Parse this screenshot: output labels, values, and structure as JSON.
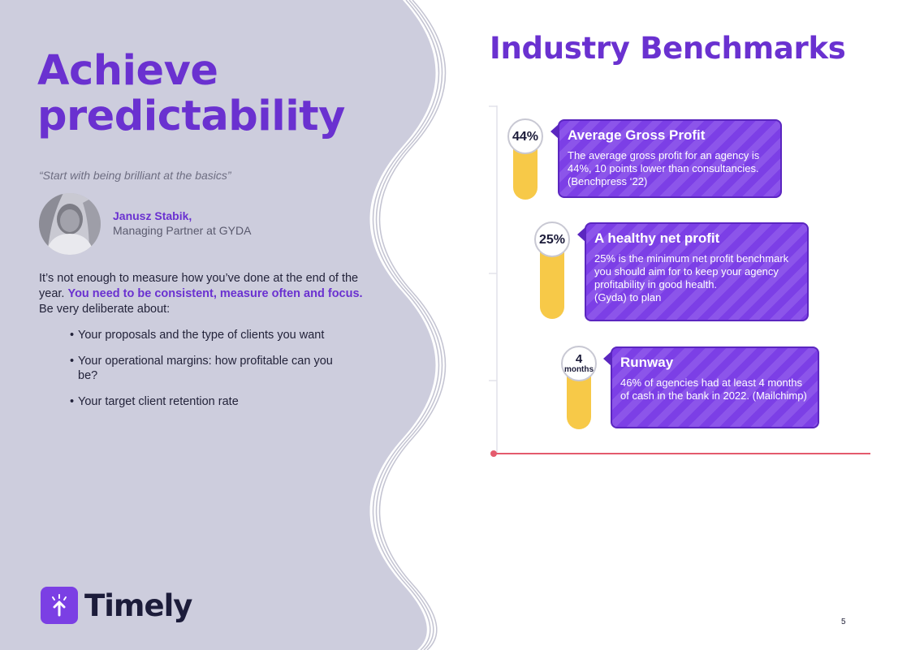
{
  "left": {
    "title_line1": "Achieve",
    "title_line2": "predictability",
    "quote": "“Start with being brilliant at the basics”",
    "person": {
      "name": "Janusz Stabik,",
      "role": "Managing Partner at GYDA"
    },
    "intro_part1": "It’s not enough to measure how you’ve done at the end of the year. ",
    "intro_emphasis": "You need to be consistent, measure often and focus.",
    "intro_part2": " Be very deliberate about:",
    "bullets": [
      "Your proposals and the type of clients you want",
      "Your operational margins: how profitable can you be?",
      "Your target client retention rate"
    ],
    "logo_text": "Timely"
  },
  "right": {
    "title": "Industry Benchmarks",
    "benchmarks": [
      {
        "badge": "44%",
        "title": "Average Gross Profit",
        "body": "The average gross profit for an agency is 44%, 10 points lower than consultancies. (Benchpress ‘22)"
      },
      {
        "badge": "25%",
        "title": "A healthy net profit",
        "body_line1": "25% is the minimum net profit benchmark you should aim for to keep your agency profitability in good health.",
        "body_line2": "(Gyda) to plan"
      },
      {
        "badge_value": "4",
        "badge_unit": "months",
        "title": "Runway",
        "body": "46% of agencies had at least 4 months of cash in the bank in 2022. (Mailchimp)"
      }
    ]
  },
  "page_number": "5",
  "colors": {
    "accent_purple": "#6a31d0",
    "panel_lavender": "#cdcddd",
    "bar_yellow": "#f7c948",
    "axis_red": "#e45b6d"
  },
  "icons": [
    "logo-arrow-icon"
  ]
}
